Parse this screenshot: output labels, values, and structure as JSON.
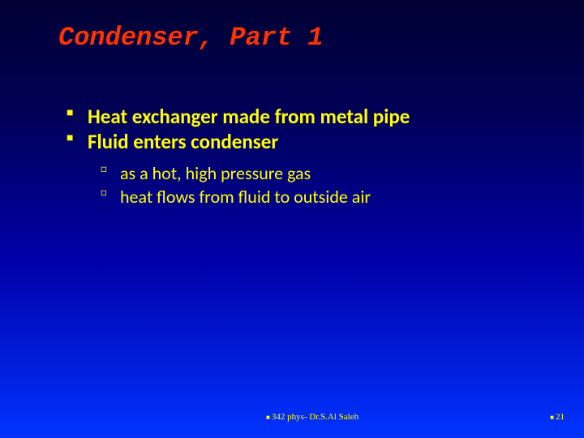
{
  "slide": {
    "title": "Condenser, Part 1",
    "bullets": [
      {
        "text": "Heat exchanger made from metal pipe"
      },
      {
        "text": "Fluid enters condenser",
        "children": [
          {
            "text": "as a hot, high pressure gas"
          },
          {
            "text": "heat flows from fluid to outside air"
          }
        ]
      }
    ],
    "footer": {
      "course": "342 phys- Dr.S.Al Saleh",
      "page": "21"
    }
  },
  "style": {
    "title_color": "#ff3300",
    "text_color": "#ffff00",
    "background_gradient": [
      "#000033",
      "#000055",
      "#0000aa",
      "#0033ff"
    ],
    "title_font": "Courier New",
    "body_font": "Segoe UI",
    "title_fontsize": 32,
    "level1_fontsize": 25,
    "level2_fontsize": 22,
    "footer_fontsize": 11
  }
}
